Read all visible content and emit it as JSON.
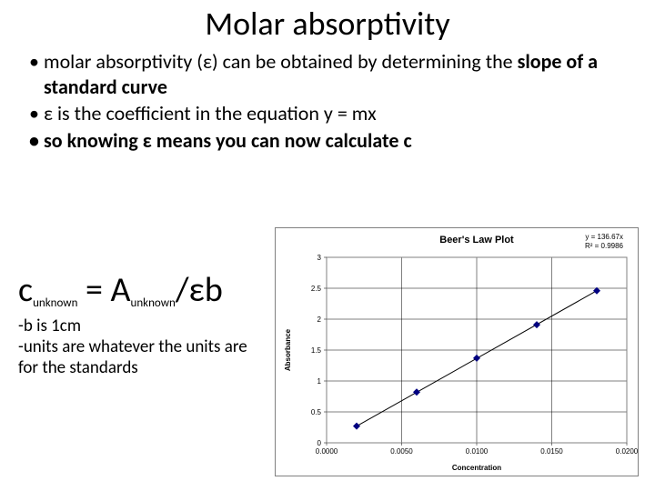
{
  "title": "Molar absorptivity",
  "bullets": {
    "b1a": "molar absorptivity (ε) can be obtained by determining the ",
    "b1b": "slope of a standard curve",
    "b2": "ε is the coefficient in the equation y = mx",
    "b3": "so knowing ε means you can now calculate c"
  },
  "formula": {
    "c": "c",
    "sub1": "unknown",
    "eq": " = A",
    "sub2": "unknown",
    "tail": "/εb"
  },
  "notes": {
    "n1": "-b is 1cm",
    "n2": "-units are whatever the units are for the standards"
  },
  "chart": {
    "type": "scatter-line",
    "title": "Beer's Law Plot",
    "title_fontsize": 11,
    "eq_label": "y = 136.67x",
    "r2_label": "R² = 0.9986",
    "xlabel": "Concentration",
    "ylabel": "Absorbance",
    "label_fontsize": 8,
    "xlim": [
      0.0,
      0.02
    ],
    "ylim": [
      0,
      3
    ],
    "xticks": [
      0.0,
      0.005,
      0.01,
      0.015,
      0.02
    ],
    "xticklabels": [
      "0.0000",
      "0.0050",
      "0.0100",
      "0.0150",
      "0.0200"
    ],
    "yticks": [
      0,
      0.5,
      1,
      1.5,
      2,
      2.5,
      3
    ],
    "yticklabels": [
      "0",
      "0.5",
      "1",
      "1.5",
      "2",
      "2.5",
      "3"
    ],
    "points": [
      {
        "x": 0.002,
        "y": 0.27
      },
      {
        "x": 0.006,
        "y": 0.82
      },
      {
        "x": 0.01,
        "y": 1.37
      },
      {
        "x": 0.014,
        "y": 1.91
      },
      {
        "x": 0.018,
        "y": 2.46
      }
    ],
    "line": {
      "x1": 0.002,
      "y1": 0.27,
      "x2": 0.018,
      "y2": 2.46
    },
    "marker_shape": "diamond",
    "marker_size": 4,
    "marker_color": "#000080",
    "line_color": "#000000",
    "line_width": 1,
    "grid_color": "#000000",
    "background_color": "#ffffff",
    "plot_border_color": "#808080",
    "tick_fontsize": 8
  }
}
